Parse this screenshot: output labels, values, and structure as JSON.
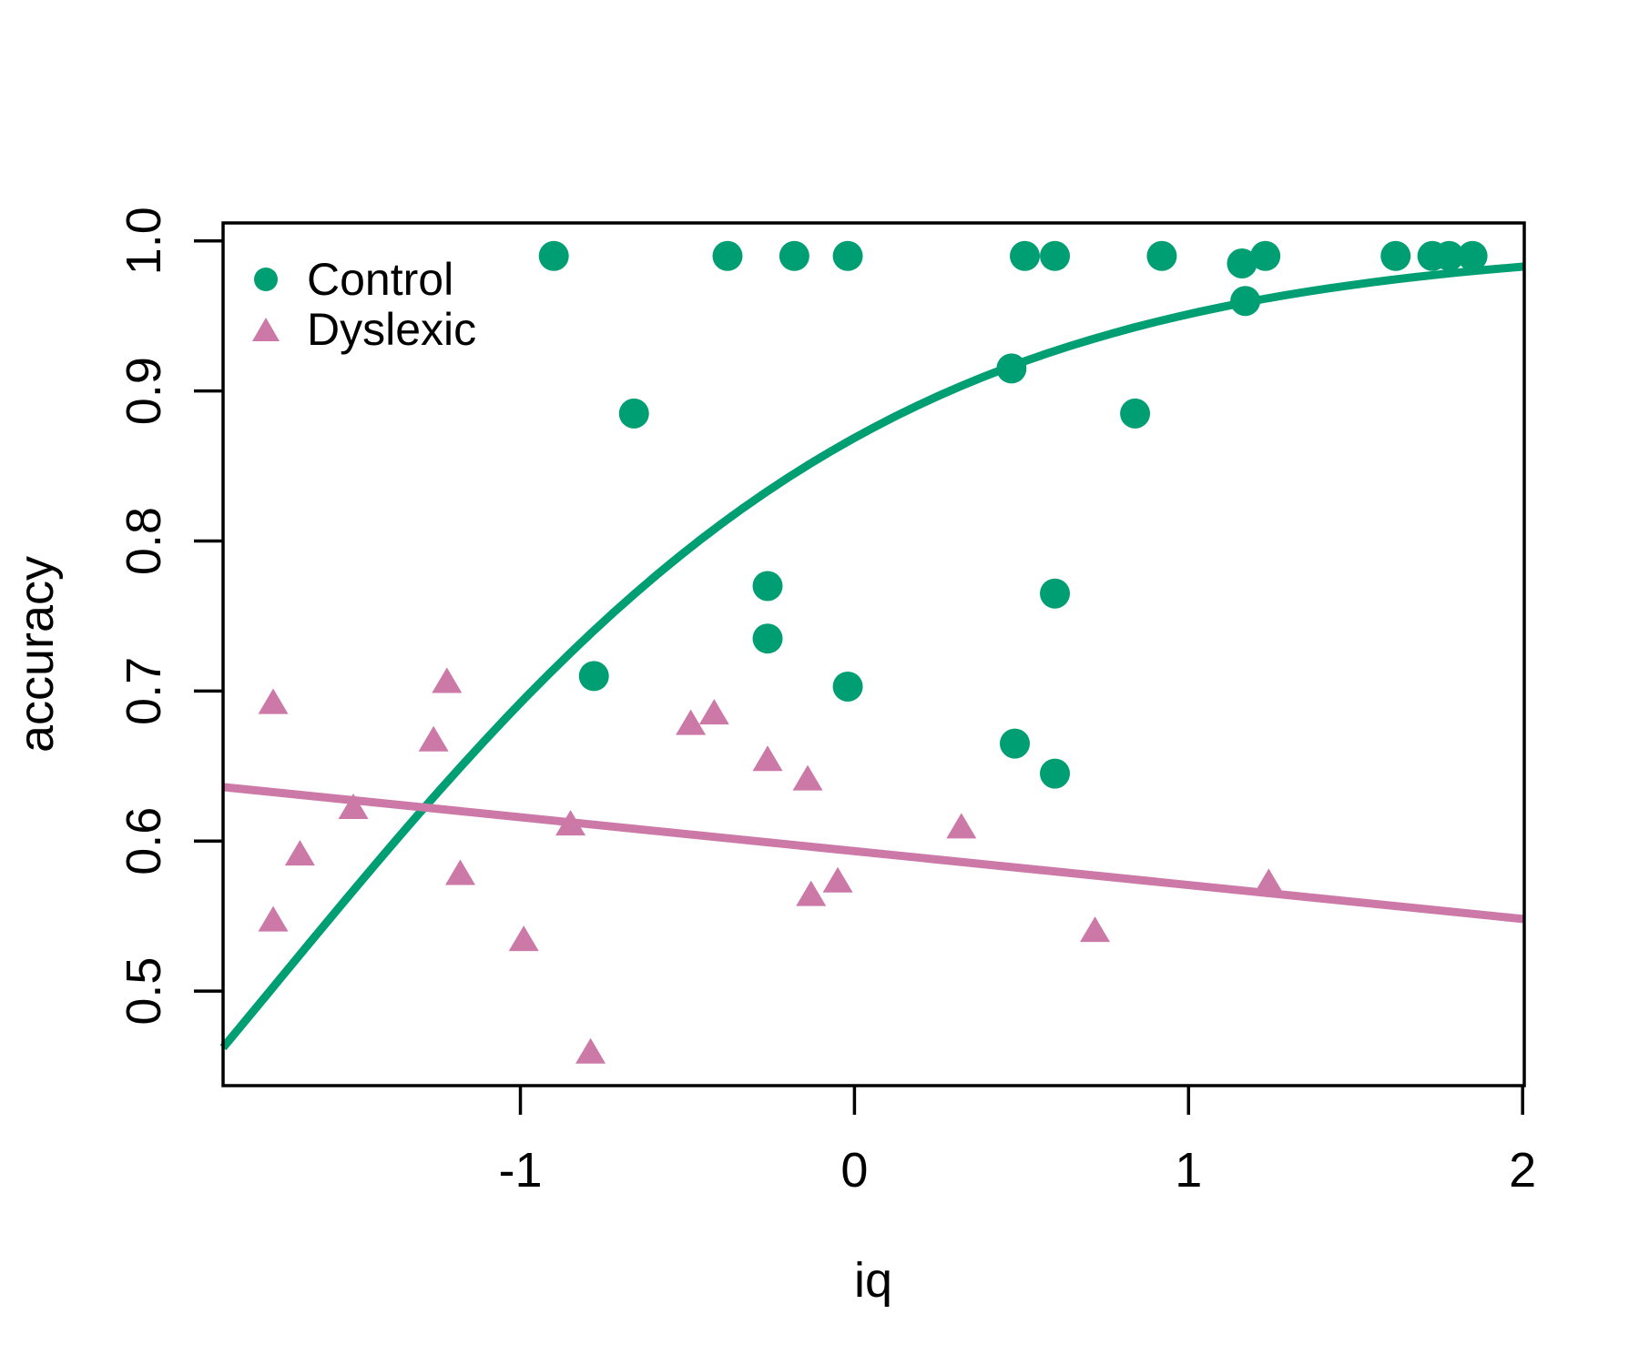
{
  "chart_data": {
    "type": "scatter",
    "title": "",
    "xlabel": "iq",
    "ylabel": "accuracy",
    "xlim": [
      -1.89,
      2.005
    ],
    "ylim": [
      0.437,
      1.012
    ],
    "grid": false,
    "x_ticks": {
      "values": [
        -1,
        0,
        1,
        2
      ],
      "labels": [
        "-1",
        "0",
        "1",
        "2"
      ]
    },
    "y_ticks": {
      "values": [
        1.0,
        0.9,
        0.8,
        0.7,
        0.6,
        0.5
      ],
      "labels": [
        "1.0",
        "0.9",
        "0.8",
        "0.7",
        "0.6",
        "0.5"
      ]
    },
    "legend": {
      "position": "top-left"
    },
    "colors": {
      "control": "#009E73",
      "dyslexic": "#CC79A7",
      "axis": "#000000",
      "background": "#FFFFFF"
    },
    "series": [
      {
        "name": "Control",
        "marker": "circle",
        "color": "#009E73",
        "points": [
          [
            -0.9,
            0.99
          ],
          [
            -0.38,
            0.99
          ],
          [
            -0.18,
            0.99
          ],
          [
            -0.02,
            0.99
          ],
          [
            0.51,
            0.99
          ],
          [
            0.6,
            0.99
          ],
          [
            0.92,
            0.99
          ],
          [
            1.16,
            0.985
          ],
          [
            1.23,
            0.99
          ],
          [
            1.62,
            0.99
          ],
          [
            1.73,
            0.99
          ],
          [
            1.78,
            0.99
          ],
          [
            1.85,
            0.99
          ],
          [
            1.17,
            0.96
          ],
          [
            0.47,
            0.915
          ],
          [
            -0.66,
            0.885
          ],
          [
            0.84,
            0.885
          ],
          [
            -0.26,
            0.77
          ],
          [
            0.6,
            0.765
          ],
          [
            -0.26,
            0.735
          ],
          [
            -0.78,
            0.71
          ],
          [
            -0.02,
            0.703
          ],
          [
            0.48,
            0.665
          ],
          [
            0.6,
            0.645
          ]
        ]
      },
      {
        "name": "Dyslexic",
        "marker": "triangle",
        "color": "#CC79A7",
        "points": [
          [
            -1.22,
            0.706
          ],
          [
            -1.74,
            0.692
          ],
          [
            -0.42,
            0.685
          ],
          [
            -0.49,
            0.678
          ],
          [
            -1.26,
            0.667
          ],
          [
            -0.26,
            0.654
          ],
          [
            -0.14,
            0.641
          ],
          [
            -1.5,
            0.622
          ],
          [
            -0.85,
            0.611
          ],
          [
            0.32,
            0.609
          ],
          [
            -1.66,
            0.591
          ],
          [
            -1.18,
            0.578
          ],
          [
            -0.05,
            0.573
          ],
          [
            1.24,
            0.572
          ],
          [
            -0.13,
            0.564
          ],
          [
            -1.74,
            0.547
          ],
          [
            0.72,
            0.54
          ],
          [
            -0.99,
            0.534
          ],
          [
            -0.79,
            0.459
          ]
        ]
      }
    ],
    "fits": [
      {
        "series": "Control",
        "type": "logistic",
        "color": "#009E73",
        "formula": "accuracy = 1 / (1 + exp(-(1.89 + 1.08*iq)))",
        "intercept": 1.89,
        "slope": 1.08,
        "x_range": [
          -1.89,
          2.005
        ]
      },
      {
        "series": "Dyslexic",
        "type": "linear",
        "color": "#CC79A7",
        "x_range": [
          -1.89,
          2.005
        ],
        "y_at_xmin": 0.636,
        "y_at_xmax": 0.548
      }
    ]
  }
}
